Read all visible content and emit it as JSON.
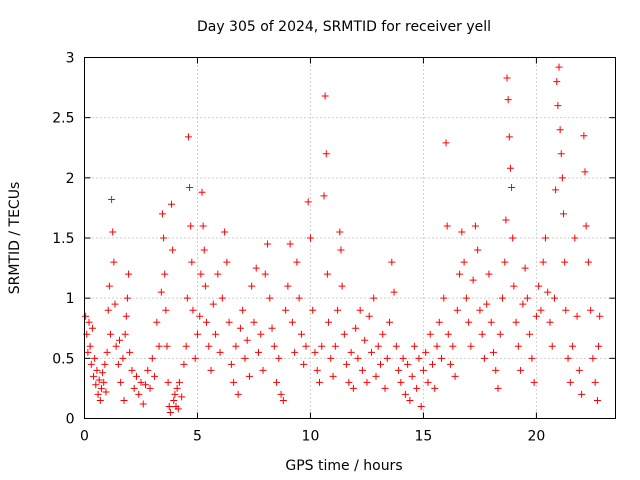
{
  "chart_data": {
    "type": "scatter",
    "title": "Day 305 of 2024, SRMTID for receiver yell",
    "xlabel": "GPS time / hours",
    "ylabel": "SRMTID / TECUs",
    "xlim": [
      0,
      23.5
    ],
    "ylim": [
      0,
      3
    ],
    "xticks": [
      0,
      5,
      10,
      15,
      20
    ],
    "xtick_labels": [
      "0",
      "5",
      "10",
      "15",
      "20"
    ],
    "yticks": [
      0,
      0.5,
      1,
      1.5,
      2,
      2.5,
      3
    ],
    "ytick_labels": [
      "0",
      "0.5",
      "1",
      "1.5",
      "2",
      "2.5",
      "3"
    ],
    "grid": true,
    "marker": "+",
    "series": [
      {
        "name": "SRMTID",
        "color": "#ff0000",
        "points": [
          [
            0.05,
            0.85
          ],
          [
            0.1,
            0.7
          ],
          [
            0.15,
            0.55
          ],
          [
            0.2,
            0.8
          ],
          [
            0.25,
            0.6
          ],
          [
            0.3,
            0.45
          ],
          [
            0.35,
            0.75
          ],
          [
            0.4,
            0.35
          ],
          [
            0.45,
            0.5
          ],
          [
            0.5,
            0.28
          ],
          [
            0.55,
            0.4
          ],
          [
            0.6,
            0.2
          ],
          [
            0.65,
            0.32
          ],
          [
            0.7,
            0.15
          ],
          [
            0.75,
            0.25
          ],
          [
            0.8,
            0.38
          ],
          [
            0.85,
            0.3
          ],
          [
            0.9,
            0.45
          ],
          [
            0.95,
            0.22
          ],
          [
            1.0,
            0.55
          ],
          [
            1.05,
            0.9
          ],
          [
            1.1,
            1.1
          ],
          [
            1.15,
            0.7
          ],
          [
            1.2,
            1.82
          ],
          [
            1.25,
            1.55
          ],
          [
            1.3,
            1.3
          ],
          [
            1.35,
            0.95
          ],
          [
            1.4,
            0.6
          ],
          [
            1.5,
            0.45
          ],
          [
            1.55,
            0.65
          ],
          [
            1.6,
            0.3
          ],
          [
            1.7,
            0.5
          ],
          [
            1.75,
            0.15
          ],
          [
            1.8,
            0.7
          ],
          [
            1.85,
            0.85
          ],
          [
            1.9,
            1.0
          ],
          [
            1.95,
            1.2
          ],
          [
            2.0,
            0.55
          ],
          [
            2.1,
            0.4
          ],
          [
            2.2,
            0.25
          ],
          [
            2.3,
            0.35
          ],
          [
            2.4,
            0.2
          ],
          [
            2.5,
            0.3
          ],
          [
            2.6,
            0.12
          ],
          [
            2.7,
            0.28
          ],
          [
            2.8,
            0.4
          ],
          [
            2.9,
            0.25
          ],
          [
            3.0,
            0.5
          ],
          [
            3.1,
            0.35
          ],
          [
            3.2,
            0.8
          ],
          [
            3.3,
            0.6
          ],
          [
            3.4,
            1.05
          ],
          [
            3.45,
            1.7
          ],
          [
            3.5,
            1.5
          ],
          [
            3.55,
            1.2
          ],
          [
            3.6,
            0.9
          ],
          [
            3.65,
            0.6
          ],
          [
            3.7,
            0.3
          ],
          [
            3.75,
            0.1
          ],
          [
            3.8,
            0.05
          ],
          [
            3.85,
            1.78
          ],
          [
            3.9,
            1.4
          ],
          [
            3.95,
            0.15
          ],
          [
            4.0,
            0.2
          ],
          [
            4.05,
            0.1
          ],
          [
            4.1,
            0.25
          ],
          [
            4.15,
            0.08
          ],
          [
            4.2,
            0.3
          ],
          [
            4.3,
            0.18
          ],
          [
            4.4,
            0.45
          ],
          [
            4.5,
            0.6
          ],
          [
            4.55,
            1.0
          ],
          [
            4.6,
            2.34
          ],
          [
            4.65,
            1.92
          ],
          [
            4.7,
            1.6
          ],
          [
            4.75,
            1.3
          ],
          [
            4.8,
            0.9
          ],
          [
            4.9,
            0.5
          ],
          [
            5.0,
            0.7
          ],
          [
            5.1,
            0.85
          ],
          [
            5.15,
            1.2
          ],
          [
            5.2,
            1.88
          ],
          [
            5.25,
            1.6
          ],
          [
            5.3,
            1.4
          ],
          [
            5.35,
            1.1
          ],
          [
            5.4,
            0.8
          ],
          [
            5.5,
            0.6
          ],
          [
            5.6,
            0.4
          ],
          [
            5.7,
            0.95
          ],
          [
            5.8,
            0.7
          ],
          [
            5.9,
            1.2
          ],
          [
            6.0,
            0.55
          ],
          [
            6.1,
            1.0
          ],
          [
            6.2,
            1.55
          ],
          [
            6.3,
            1.3
          ],
          [
            6.4,
            0.8
          ],
          [
            6.5,
            0.45
          ],
          [
            6.6,
            0.3
          ],
          [
            6.7,
            0.6
          ],
          [
            6.8,
            0.2
          ],
          [
            6.9,
            0.75
          ],
          [
            7.0,
            0.9
          ],
          [
            7.1,
            0.5
          ],
          [
            7.2,
            0.65
          ],
          [
            7.3,
            0.35
          ],
          [
            7.4,
            1.1
          ],
          [
            7.5,
            0.8
          ],
          [
            7.6,
            1.25
          ],
          [
            7.7,
            0.55
          ],
          [
            7.8,
            0.7
          ],
          [
            7.9,
            0.4
          ],
          [
            8.0,
            1.2
          ],
          [
            8.1,
            1.45
          ],
          [
            8.2,
            1.0
          ],
          [
            8.3,
            0.75
          ],
          [
            8.4,
            0.6
          ],
          [
            8.5,
            0.3
          ],
          [
            8.6,
            0.5
          ],
          [
            8.7,
            0.2
          ],
          [
            8.8,
            0.15
          ],
          [
            8.9,
            0.9
          ],
          [
            9.0,
            1.1
          ],
          [
            9.1,
            1.45
          ],
          [
            9.2,
            0.8
          ],
          [
            9.3,
            0.55
          ],
          [
            9.4,
            1.3
          ],
          [
            9.5,
            1.0
          ],
          [
            9.6,
            0.7
          ],
          [
            9.7,
            0.45
          ],
          [
            9.8,
            0.6
          ],
          [
            9.9,
            1.8
          ],
          [
            10.0,
            1.5
          ],
          [
            10.1,
            0.9
          ],
          [
            10.2,
            0.55
          ],
          [
            10.3,
            0.4
          ],
          [
            10.4,
            0.3
          ],
          [
            10.5,
            0.6
          ],
          [
            10.6,
            1.85
          ],
          [
            10.65,
            2.68
          ],
          [
            10.7,
            2.2
          ],
          [
            10.75,
            1.2
          ],
          [
            10.8,
            0.8
          ],
          [
            10.9,
            0.5
          ],
          [
            11.0,
            0.35
          ],
          [
            11.1,
            0.6
          ],
          [
            11.2,
            0.9
          ],
          [
            11.3,
            1.55
          ],
          [
            11.35,
            1.4
          ],
          [
            11.4,
            1.1
          ],
          [
            11.5,
            0.7
          ],
          [
            11.6,
            0.45
          ],
          [
            11.7,
            0.3
          ],
          [
            11.8,
            0.55
          ],
          [
            11.9,
            0.25
          ],
          [
            12.0,
            0.75
          ],
          [
            12.1,
            0.5
          ],
          [
            12.2,
            0.9
          ],
          [
            12.3,
            0.4
          ],
          [
            12.4,
            0.65
          ],
          [
            12.5,
            0.3
          ],
          [
            12.6,
            0.85
          ],
          [
            12.7,
            0.55
          ],
          [
            12.8,
            1.0
          ],
          [
            12.9,
            0.35
          ],
          [
            13.0,
            0.6
          ],
          [
            13.1,
            0.45
          ],
          [
            13.2,
            0.7
          ],
          [
            13.3,
            0.25
          ],
          [
            13.4,
            0.5
          ],
          [
            13.5,
            0.8
          ],
          [
            13.6,
            1.3
          ],
          [
            13.7,
            1.05
          ],
          [
            13.8,
            0.6
          ],
          [
            13.9,
            0.4
          ],
          [
            14.0,
            0.3
          ],
          [
            14.1,
            0.5
          ],
          [
            14.2,
            0.2
          ],
          [
            14.3,
            0.45
          ],
          [
            14.4,
            0.15
          ],
          [
            14.5,
            0.35
          ],
          [
            14.6,
            0.6
          ],
          [
            14.7,
            0.25
          ],
          [
            14.8,
            0.5
          ],
          [
            14.9,
            0.1
          ],
          [
            15.0,
            0.4
          ],
          [
            15.1,
            0.55
          ],
          [
            15.2,
            0.3
          ],
          [
            15.3,
            0.7
          ],
          [
            15.4,
            0.45
          ],
          [
            15.5,
            0.25
          ],
          [
            15.6,
            0.6
          ],
          [
            15.7,
            0.8
          ],
          [
            15.8,
            0.5
          ],
          [
            15.9,
            1.0
          ],
          [
            16.0,
            2.29
          ],
          [
            16.05,
            1.6
          ],
          [
            16.1,
            0.7
          ],
          [
            16.2,
            0.45
          ],
          [
            16.3,
            0.6
          ],
          [
            16.4,
            0.35
          ],
          [
            16.5,
            0.9
          ],
          [
            16.6,
            1.2
          ],
          [
            16.7,
            1.55
          ],
          [
            16.8,
            1.3
          ],
          [
            16.9,
            1.0
          ],
          [
            17.0,
            0.8
          ],
          [
            17.1,
            0.6
          ],
          [
            17.2,
            1.15
          ],
          [
            17.3,
            1.6
          ],
          [
            17.4,
            1.4
          ],
          [
            17.5,
            0.9
          ],
          [
            17.6,
            0.7
          ],
          [
            17.7,
            0.5
          ],
          [
            17.8,
            0.95
          ],
          [
            17.9,
            1.2
          ],
          [
            18.0,
            0.8
          ],
          [
            18.1,
            0.55
          ],
          [
            18.2,
            0.4
          ],
          [
            18.3,
            0.25
          ],
          [
            18.4,
            0.7
          ],
          [
            18.5,
            1.0
          ],
          [
            18.6,
            1.3
          ],
          [
            18.65,
            1.65
          ],
          [
            18.7,
            2.83
          ],
          [
            18.75,
            2.65
          ],
          [
            18.8,
            2.34
          ],
          [
            18.85,
            2.08
          ],
          [
            18.9,
            1.92
          ],
          [
            18.95,
            1.5
          ],
          [
            19.0,
            1.1
          ],
          [
            19.1,
            0.8
          ],
          [
            19.2,
            0.6
          ],
          [
            19.3,
            0.4
          ],
          [
            19.4,
            0.95
          ],
          [
            19.5,
            1.25
          ],
          [
            19.6,
            1.0
          ],
          [
            19.7,
            0.7
          ],
          [
            19.8,
            0.5
          ],
          [
            19.9,
            0.3
          ],
          [
            20.0,
            0.85
          ],
          [
            20.1,
            1.1
          ],
          [
            20.2,
            0.9
          ],
          [
            20.3,
            1.3
          ],
          [
            20.4,
            1.5
          ],
          [
            20.5,
            1.05
          ],
          [
            20.6,
            0.8
          ],
          [
            20.7,
            0.6
          ],
          [
            20.8,
            1.0
          ],
          [
            20.85,
            1.9
          ],
          [
            20.9,
            2.8
          ],
          [
            20.95,
            2.6
          ],
          [
            21.0,
            2.92
          ],
          [
            21.05,
            2.4
          ],
          [
            21.1,
            2.2
          ],
          [
            21.15,
            2.0
          ],
          [
            21.2,
            1.7
          ],
          [
            21.25,
            1.3
          ],
          [
            21.3,
            0.9
          ],
          [
            21.4,
            0.5
          ],
          [
            21.5,
            0.3
          ],
          [
            21.6,
            0.6
          ],
          [
            21.7,
            1.5
          ],
          [
            21.8,
            0.85
          ],
          [
            21.9,
            0.4
          ],
          [
            22.0,
            0.2
          ],
          [
            22.1,
            2.35
          ],
          [
            22.15,
            2.05
          ],
          [
            22.2,
            1.6
          ],
          [
            22.3,
            1.3
          ],
          [
            22.4,
            0.9
          ],
          [
            22.5,
            0.5
          ],
          [
            22.6,
            0.3
          ],
          [
            22.7,
            0.15
          ],
          [
            22.75,
            0.6
          ],
          [
            22.8,
            0.85
          ]
        ]
      }
    ]
  }
}
